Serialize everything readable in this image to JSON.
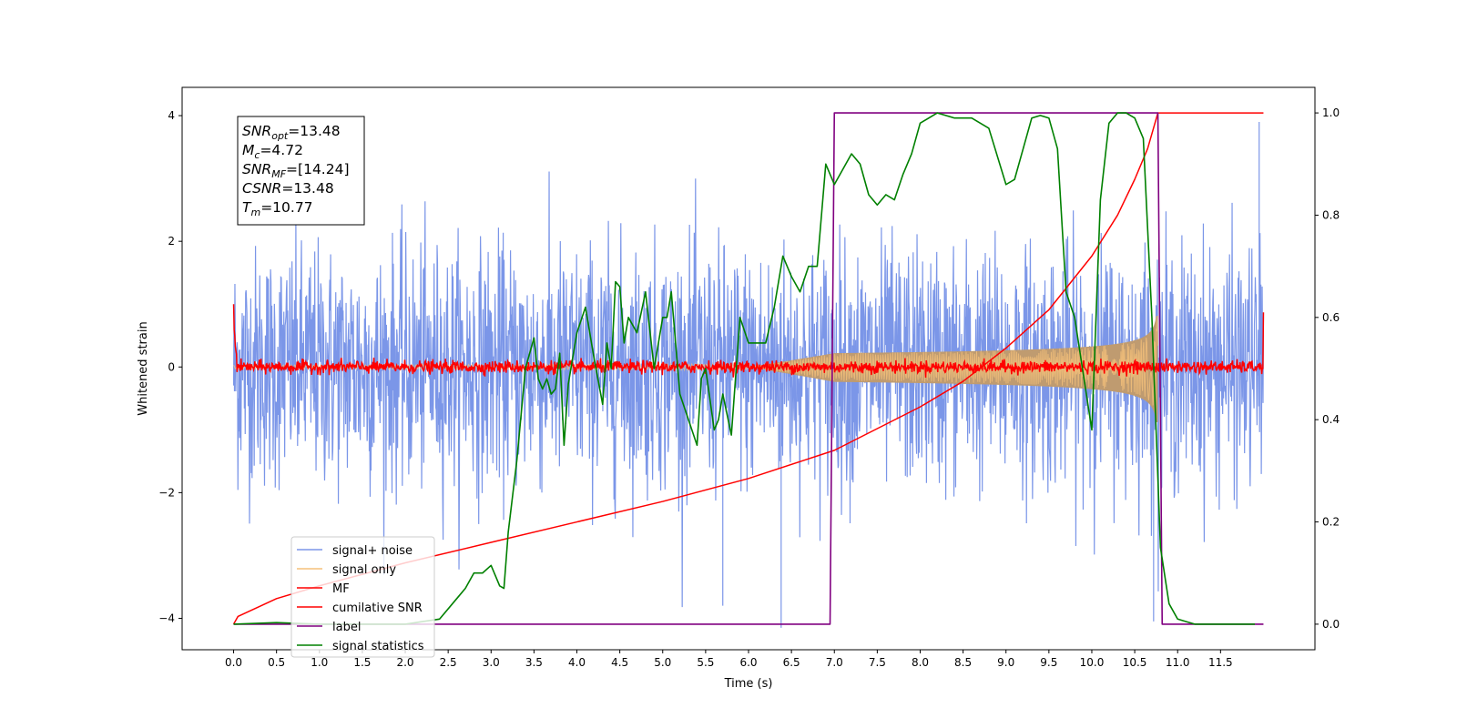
{
  "chart_data": {
    "type": "line",
    "title": "",
    "xlabel": "Time (s)",
    "ylabel": "Whitened strain",
    "y2label": "",
    "xlim": [
      -0.6,
      12.6
    ],
    "ylim": [
      -4.5,
      4.45
    ],
    "y2lim": [
      -0.05,
      1.05
    ],
    "x_ticks": [
      "0.0",
      "0.5",
      "1.0",
      "1.5",
      "2.0",
      "2.5",
      "3.0",
      "3.5",
      "4.0",
      "4.5",
      "5.0",
      "5.5",
      "6.0",
      "6.5",
      "7.0",
      "7.5",
      "8.0",
      "8.5",
      "9.0",
      "9.5",
      "10.0",
      "10.5",
      "11.0",
      "11.5"
    ],
    "y_ticks": [
      "−4",
      "−2",
      "0",
      "2",
      "4"
    ],
    "y2_ticks": [
      "0.0",
      "0.2",
      "0.4",
      "0.6",
      "0.8",
      "1.0"
    ],
    "grid": false,
    "legend_position": "lower-left",
    "stats_box": {
      "snr_opt": {
        "sym": "SNR",
        "sub": "opt",
        "value": "=13.48"
      },
      "mc": {
        "sym": "M",
        "sub": "c",
        "value": "=4.72"
      },
      "snr_mf": {
        "sym": "SNR",
        "sub": "MF",
        "value": "=[14.24]"
      },
      "csnr": {
        "sym": "CSNR",
        "sub": "",
        "value": "=13.48"
      },
      "tm": {
        "sym": "T",
        "sub": "m",
        "value": "=10.77"
      }
    },
    "series": [
      {
        "name": "signal+ noise",
        "color": "#7b96e8",
        "axis": "left",
        "kind": "noise",
        "t_range": [
          0,
          12
        ],
        "std": 0.95,
        "extreme_min": -4.15,
        "extreme_max": 3.9
      },
      {
        "name": "signal only",
        "color": "#f5c07a",
        "axis": "left",
        "kind": "chirp",
        "t_range": [
          0,
          10.77
        ],
        "amplitude_at_merger": 1.0,
        "amplitude_at_7s": 0.22,
        "fill_color": "#bf9b70"
      },
      {
        "name": "MF",
        "color": "#ff0000",
        "axis": "left",
        "kind": "noise",
        "t_range": [
          0,
          12
        ],
        "std": 0.05,
        "edge_values": [
          1.0,
          0.87
        ]
      },
      {
        "name": "cumilative SNR",
        "color": "#ff0000",
        "axis": "right",
        "x": [
          0,
          0.05,
          0.5,
          1,
          2,
          3,
          4,
          5,
          6,
          7,
          8,
          8.5,
          9,
          9.5,
          10,
          10.3,
          10.5,
          10.65,
          10.77,
          12
        ],
        "y": [
          0,
          0.015,
          0.05,
          0.075,
          0.12,
          0.16,
          0.2,
          0.24,
          0.285,
          0.34,
          0.425,
          0.475,
          0.54,
          0.615,
          0.72,
          0.8,
          0.87,
          0.93,
          1.0,
          1.0
        ]
      },
      {
        "name": "label",
        "color": "#800080",
        "axis": "right",
        "x": [
          0,
          6.95,
          7.0,
          10.77,
          10.82,
          12
        ],
        "y": [
          0,
          0,
          1,
          1,
          0,
          0
        ]
      },
      {
        "name": "signal statistics",
        "color": "#008000",
        "axis": "right",
        "x": [
          0,
          0.5,
          1.0,
          1.5,
          2.0,
          2.2,
          2.4,
          2.6,
          2.7,
          2.8,
          2.9,
          3.0,
          3.1,
          3.15,
          3.2,
          3.3,
          3.4,
          3.5,
          3.55,
          3.6,
          3.65,
          3.7,
          3.75,
          3.8,
          3.85,
          3.9,
          4.0,
          4.1,
          4.2,
          4.3,
          4.35,
          4.4,
          4.45,
          4.5,
          4.55,
          4.6,
          4.7,
          4.8,
          4.9,
          5.0,
          5.05,
          5.1,
          5.2,
          5.3,
          5.4,
          5.45,
          5.5,
          5.6,
          5.65,
          5.7,
          5.8,
          5.9,
          6.0,
          6.1,
          6.2,
          6.3,
          6.4,
          6.5,
          6.6,
          6.7,
          6.8,
          6.9,
          7.0,
          7.1,
          7.2,
          7.3,
          7.4,
          7.5,
          7.6,
          7.7,
          7.8,
          7.9,
          8.0,
          8.2,
          8.4,
          8.6,
          8.8,
          9.0,
          9.1,
          9.2,
          9.3,
          9.4,
          9.5,
          9.6,
          9.7,
          9.8,
          10.0,
          10.1,
          10.2,
          10.3,
          10.4,
          10.5,
          10.6,
          10.7,
          10.8,
          10.9,
          11.0,
          11.1,
          11.2,
          11.5,
          11.9
        ],
        "y": [
          0.0,
          0.003,
          0.0,
          0.0,
          0.0,
          0.005,
          0.01,
          0.05,
          0.07,
          0.1,
          0.1,
          0.115,
          0.075,
          0.07,
          0.18,
          0.32,
          0.5,
          0.56,
          0.48,
          0.46,
          0.48,
          0.45,
          0.46,
          0.53,
          0.35,
          0.47,
          0.57,
          0.62,
          0.52,
          0.43,
          0.55,
          0.5,
          0.67,
          0.66,
          0.55,
          0.6,
          0.57,
          0.65,
          0.5,
          0.6,
          0.6,
          0.65,
          0.45,
          0.4,
          0.35,
          0.48,
          0.5,
          0.38,
          0.4,
          0.45,
          0.37,
          0.6,
          0.55,
          0.55,
          0.55,
          0.62,
          0.72,
          0.68,
          0.65,
          0.7,
          0.7,
          0.9,
          0.86,
          0.89,
          0.92,
          0.9,
          0.84,
          0.82,
          0.84,
          0.83,
          0.88,
          0.92,
          0.98,
          1.0,
          0.99,
          0.99,
          0.97,
          0.86,
          0.87,
          0.93,
          0.99,
          0.995,
          0.99,
          0.93,
          0.65,
          0.6,
          0.38,
          0.83,
          0.98,
          1.0,
          1.0,
          0.99,
          0.95,
          0.6,
          0.15,
          0.04,
          0.01,
          0.005,
          0.0,
          0.0,
          0.0
        ]
      }
    ]
  }
}
